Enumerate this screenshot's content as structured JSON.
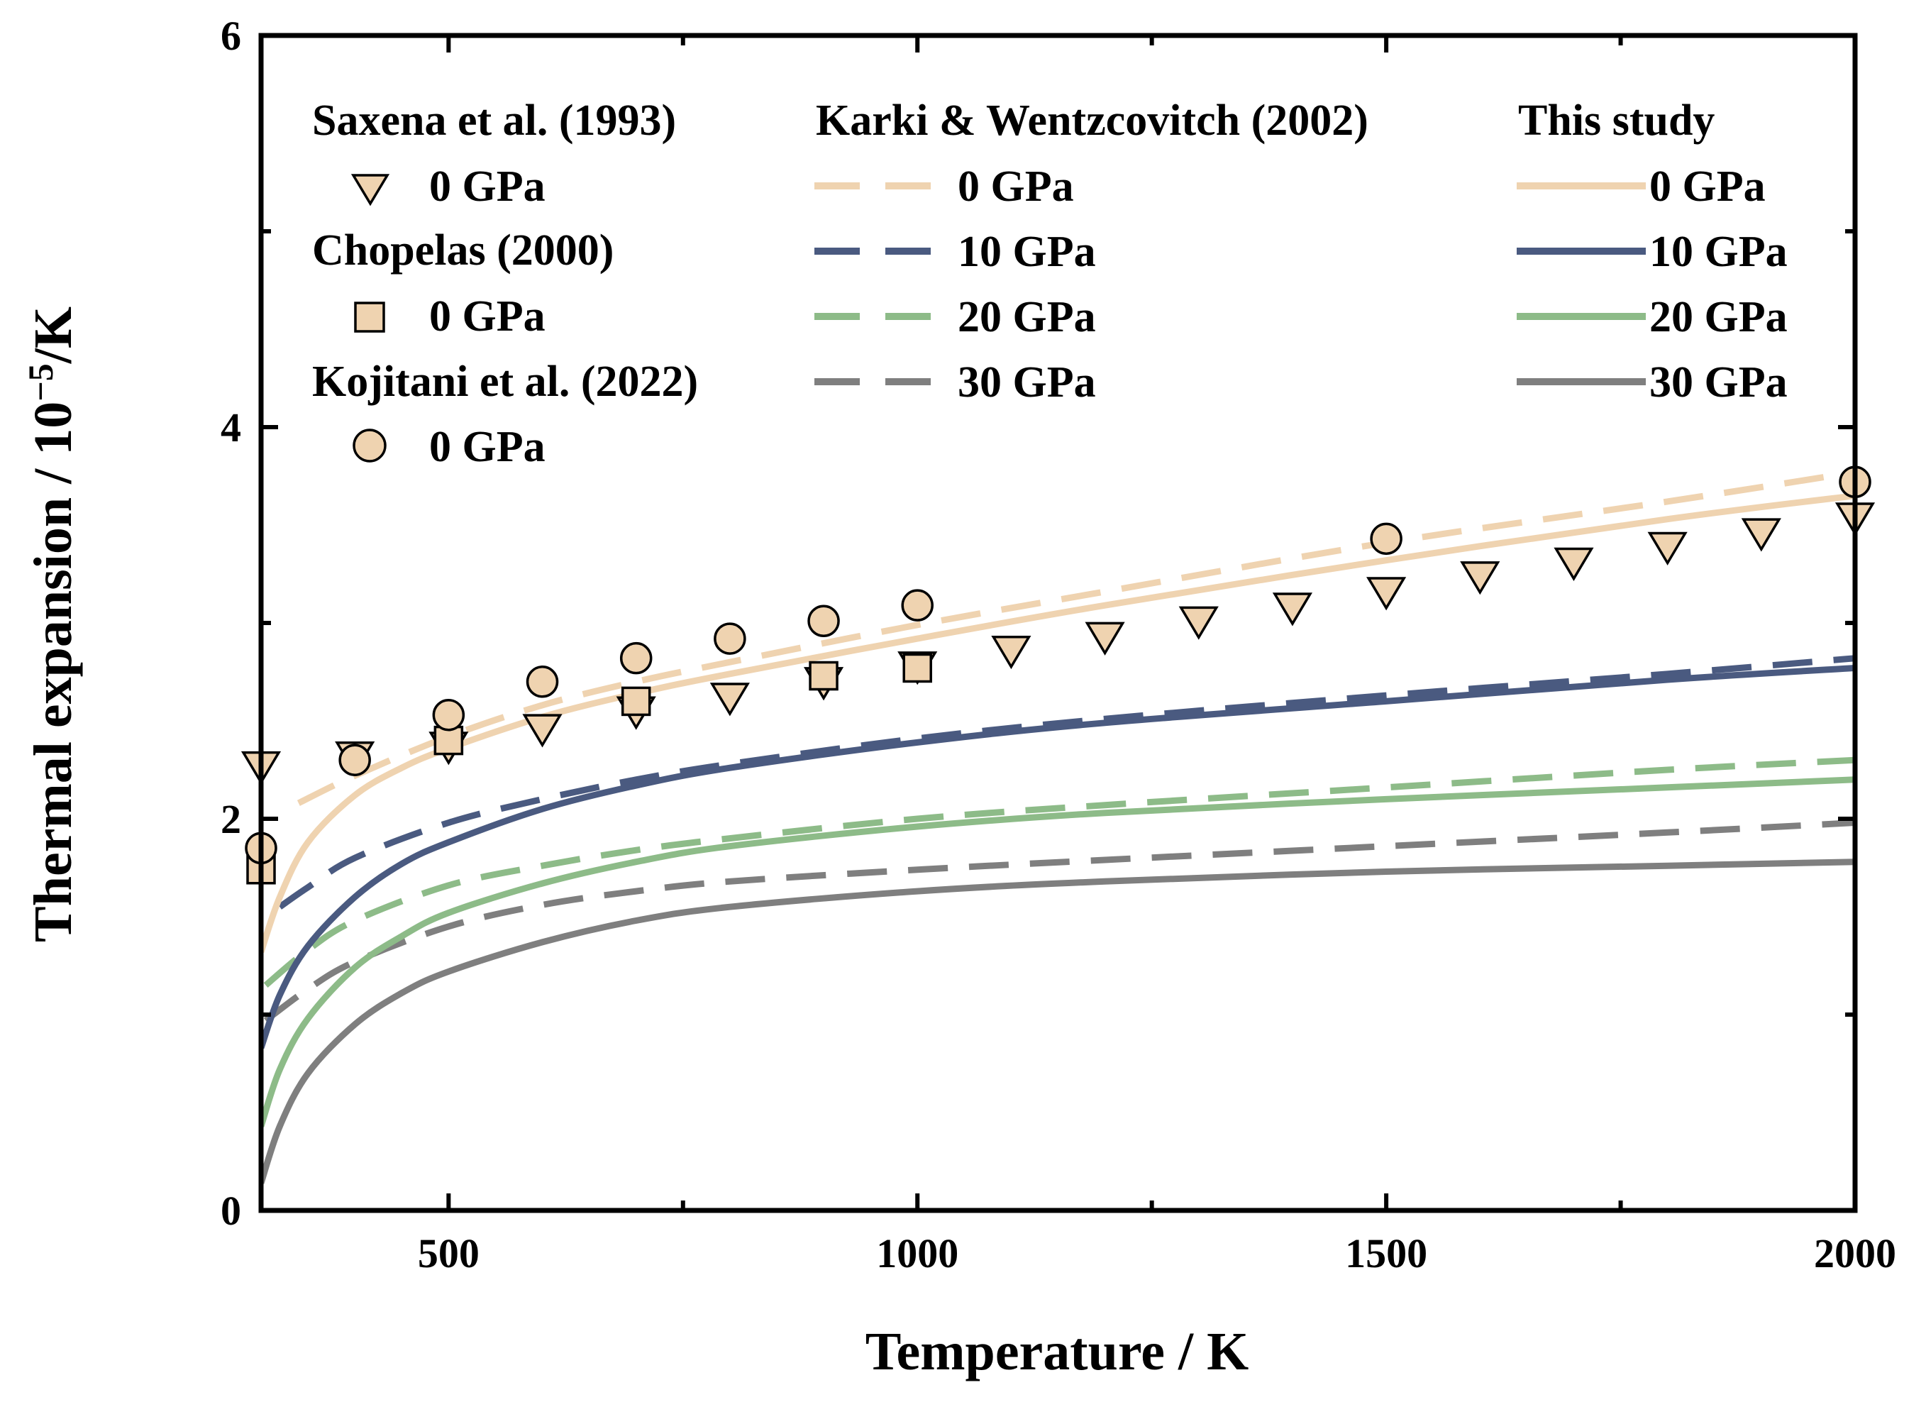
{
  "chart_data": {
    "type": "scatter",
    "xlabel": "Temperature / K",
    "ylabel_main": "Thermal expansion / 10",
    "ylabel_exp": "−5",
    "ylabel_unit": "/K",
    "xlim": [
      300,
      2000
    ],
    "ylim": [
      0,
      6
    ],
    "x_ticks": [
      500,
      1000,
      1500,
      2000
    ],
    "x_tick_labels": [
      "500",
      "1000",
      "1500",
      "2000"
    ],
    "x_minor_ticks": [
      750,
      1250,
      1750
    ],
    "y_ticks": [
      0,
      2,
      4,
      6
    ],
    "y_tick_labels": [
      "0",
      "2",
      "4",
      "6"
    ],
    "y_minor_ticks": [
      1,
      3,
      5
    ],
    "colors": {
      "p0": "#efd3b0",
      "p10": "#4a5a80",
      "p20": "#8dbb88",
      "p30": "#7f7f7f"
    },
    "legend": {
      "groups": [
        {
          "title": "Saxena et al. (1993)",
          "items": [
            {
              "label": "0 GPa",
              "marker": "triangle-down-icon"
            }
          ]
        },
        {
          "title": "Chopelas (2000)",
          "items": [
            {
              "label": "0 GPa",
              "marker": "square-icon"
            }
          ]
        },
        {
          "title": "Kojitani et al. (2022)",
          "items": [
            {
              "label": "0 GPa",
              "marker": "circle-icon"
            }
          ]
        },
        {
          "title": "Karki & Wentzcovitch (2002)",
          "items": [
            {
              "label": "0 GPa",
              "style": "dashed",
              "color": "#efd3b0"
            },
            {
              "label": "10 GPa",
              "style": "dashed",
              "color": "#4a5a80"
            },
            {
              "label": "20 GPa",
              "style": "dashed",
              "color": "#8dbb88"
            },
            {
              "label": "30 GPa",
              "style": "dashed",
              "color": "#7f7f7f"
            }
          ]
        },
        {
          "title": "This study",
          "items": [
            {
              "label": "0 GPa",
              "style": "solid",
              "color": "#efd3b0"
            },
            {
              "label": "10 GPa",
              "style": "solid",
              "color": "#4a5a80"
            },
            {
              "label": "20 GPa",
              "style": "solid",
              "color": "#8dbb88"
            },
            {
              "label": "30 GPa",
              "style": "solid",
              "color": "#7f7f7f"
            }
          ]
        }
      ]
    },
    "series": [
      {
        "name": "Saxena et al. (1993) 0 GPa",
        "kind": "marker",
        "marker": "triangle-down",
        "x": [
          300,
          400,
          500,
          600,
          700,
          800,
          900,
          1000,
          1100,
          1200,
          1300,
          1400,
          1500,
          1600,
          1700,
          1800,
          1900,
          2000
        ],
        "y": [
          2.27,
          2.32,
          2.37,
          2.46,
          2.55,
          2.62,
          2.7,
          2.78,
          2.86,
          2.93,
          3.01,
          3.08,
          3.16,
          3.24,
          3.31,
          3.39,
          3.46,
          3.54
        ]
      },
      {
        "name": "Chopelas (2000) 0 GPa",
        "kind": "marker",
        "marker": "square",
        "x": [
          300,
          500,
          700,
          900,
          1000
        ],
        "y": [
          1.74,
          2.4,
          2.6,
          2.73,
          2.77
        ]
      },
      {
        "name": "Kojitani et al. (2022) 0 GPa",
        "kind": "marker",
        "marker": "circle",
        "x": [
          300,
          400,
          500,
          600,
          700,
          800,
          900,
          1000,
          1500,
          2000
        ],
        "y": [
          1.85,
          2.3,
          2.53,
          2.7,
          2.82,
          2.92,
          3.01,
          3.09,
          3.43,
          3.72
        ]
      },
      {
        "name": "Karki & Wentzcovitch (2002) 0 GPa",
        "kind": "line",
        "style": "dashed",
        "color": "#efd3b0",
        "x": [
          340,
          400,
          500,
          600,
          700,
          800,
          1000,
          1200,
          1500,
          1800,
          2000
        ],
        "y": [
          2.08,
          2.22,
          2.42,
          2.58,
          2.7,
          2.8,
          2.99,
          3.16,
          3.41,
          3.62,
          3.77
        ]
      },
      {
        "name": "Karki & Wentzcovitch (2002) 10 GPa",
        "kind": "line",
        "style": "dashed",
        "color": "#4a5a80",
        "x": [
          320,
          350,
          400,
          500,
          600,
          700,
          800,
          1000,
          1200,
          1500,
          1800,
          2000
        ],
        "y": [
          1.55,
          1.65,
          1.8,
          1.98,
          2.1,
          2.2,
          2.28,
          2.41,
          2.51,
          2.63,
          2.74,
          2.82
        ]
      },
      {
        "name": "Karki & Wentzcovitch (2002) 20 GPa",
        "kind": "line",
        "style": "dashed",
        "color": "#8dbb88",
        "x": [
          305,
          350,
          400,
          500,
          600,
          700,
          800,
          1000,
          1200,
          1500,
          1800,
          2000
        ],
        "y": [
          1.15,
          1.33,
          1.48,
          1.66,
          1.76,
          1.84,
          1.9,
          2.0,
          2.07,
          2.16,
          2.25,
          2.3
        ]
      },
      {
        "name": "Karki & Wentzcovitch (2002) 30 GPa",
        "kind": "line",
        "style": "dashed",
        "color": "#7f7f7f",
        "x": [
          305,
          350,
          400,
          500,
          600,
          700,
          800,
          1000,
          1200,
          1500,
          1800,
          2000
        ],
        "y": [
          0.97,
          1.13,
          1.27,
          1.45,
          1.56,
          1.63,
          1.68,
          1.74,
          1.79,
          1.86,
          1.93,
          1.98
        ]
      },
      {
        "name": "This study 0 GPa",
        "kind": "line",
        "style": "solid",
        "color": "#efd3b0",
        "x": [
          300,
          320,
          350,
          400,
          450,
          500,
          600,
          700,
          800,
          1000,
          1200,
          1500,
          1800,
          2000
        ],
        "y": [
          1.32,
          1.6,
          1.88,
          2.12,
          2.26,
          2.36,
          2.52,
          2.64,
          2.74,
          2.92,
          3.09,
          3.32,
          3.53,
          3.65
        ]
      },
      {
        "name": "This study 10 GPa",
        "kind": "line",
        "style": "solid",
        "color": "#4a5a80",
        "x": [
          300,
          320,
          350,
          400,
          450,
          500,
          600,
          700,
          800,
          1000,
          1200,
          1500,
          1800,
          2000
        ],
        "y": [
          0.83,
          1.1,
          1.35,
          1.6,
          1.77,
          1.88,
          2.05,
          2.17,
          2.26,
          2.39,
          2.49,
          2.6,
          2.71,
          2.77
        ]
      },
      {
        "name": "This study 20 GPa",
        "kind": "line",
        "style": "solid",
        "color": "#8dbb88",
        "x": [
          300,
          320,
          350,
          400,
          450,
          500,
          600,
          700,
          800,
          1000,
          1200,
          1500,
          1800,
          2000
        ],
        "y": [
          0.43,
          0.72,
          0.98,
          1.24,
          1.4,
          1.52,
          1.67,
          1.78,
          1.86,
          1.96,
          2.03,
          2.1,
          2.16,
          2.2
        ]
      },
      {
        "name": "This study 30 GPa",
        "kind": "line",
        "style": "solid",
        "color": "#7f7f7f",
        "x": [
          300,
          320,
          350,
          400,
          450,
          500,
          600,
          700,
          800,
          1000,
          1200,
          1500,
          1800,
          2000
        ],
        "y": [
          0.14,
          0.43,
          0.7,
          0.95,
          1.11,
          1.22,
          1.37,
          1.48,
          1.55,
          1.63,
          1.68,
          1.73,
          1.76,
          1.78
        ]
      }
    ]
  }
}
